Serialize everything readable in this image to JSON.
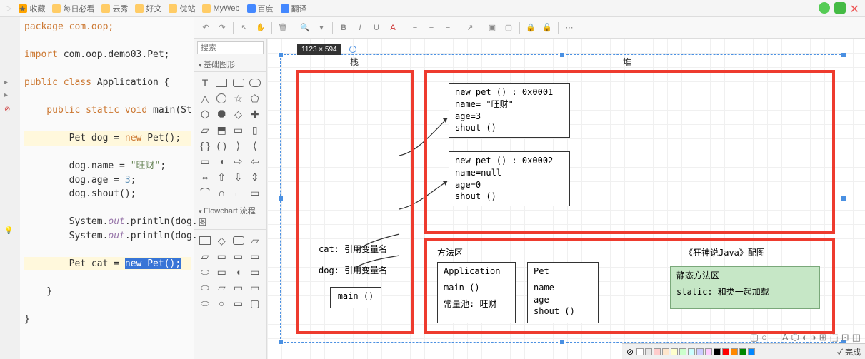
{
  "bookmarks": {
    "favorite": "收藏",
    "daily": "每日必看",
    "cloud": "云秀",
    "goodtext": "好文",
    "site": "优站",
    "myweb": "MyWeb",
    "baidu": "百度",
    "translate": "翻译"
  },
  "toolbar": {
    "size_badge": "1123 × 594"
  },
  "shapes": {
    "search_placeholder": "搜索",
    "section_basic": "基础图形",
    "section_flowchart": "Flowchart 流程图"
  },
  "code": {
    "line1": "package com.oop;",
    "line2": "import com.oop.demo03.Pet;",
    "line3_a": "public class ",
    "line3_b": "Application {",
    "line4_a": "    public static void ",
    "line4_b": "main(St",
    "line5_a": "        Pet dog = ",
    "line5_b": "new ",
    "line5_c": "Pet();",
    "line6_a": "        dog.name = ",
    "line6_b": "\"旺财\"",
    "line6_c": ";",
    "line7_a": "        dog.age = ",
    "line7_b": "3",
    "line7_c": ";",
    "line8": "        dog.shout();",
    "line9_a": "        System.",
    "line9_b": "out",
    "line9_c": ".println(dog.",
    "line10_a": "        System.",
    "line10_b": "out",
    "line10_c": ".println(dog.",
    "line11_a": "        Pet cat = ",
    "line11_b": "new Pet();",
    "line12": "    }",
    "line13": "}"
  },
  "diagram": {
    "label_stack": "栈",
    "label_heap": "堆",
    "stack_cat": "cat: 引用变量名",
    "stack_dog": "dog: 引用变量名",
    "stack_main": "main ()",
    "heap1_l1": "new pet ()   :  0x0001",
    "heap1_l2": "name= \"旺财\"",
    "heap1_l3": "age=3",
    "heap1_l4": "shout ()",
    "heap2_l1": "new pet ()   :  0x0002",
    "heap2_l2": "name=null",
    "heap2_l3": "age=0",
    "heap2_l4": "shout ()",
    "method_title": "方法区",
    "method_right": "《狂神说Java》配图",
    "app_l1": "Application",
    "app_l2": "main ()",
    "app_l3": "常量池: 旺财",
    "pet_l1": "Pet",
    "pet_l2": "name",
    "pet_l3": "age",
    "pet_l4": "shout ()",
    "static_l1": "静态方法区",
    "static_l2": "static: 和类一起加载"
  },
  "bottom": {
    "done": "✓ 完成"
  },
  "colors": {
    "red": "#ee3b2e",
    "green_fill": "#c6e7c6",
    "green_border": "#7aa87a",
    "blue_sel": "#4a90e2",
    "palette": [
      "#ffffff",
      "#e6e6e6",
      "#ffcccc",
      "#ffe6cc",
      "#ffffcc",
      "#ccffcc",
      "#ccffff",
      "#ccccff",
      "#ffccff",
      "#000000",
      "#ff0000",
      "#ff8800",
      "#008800",
      "#0088ff"
    ]
  }
}
